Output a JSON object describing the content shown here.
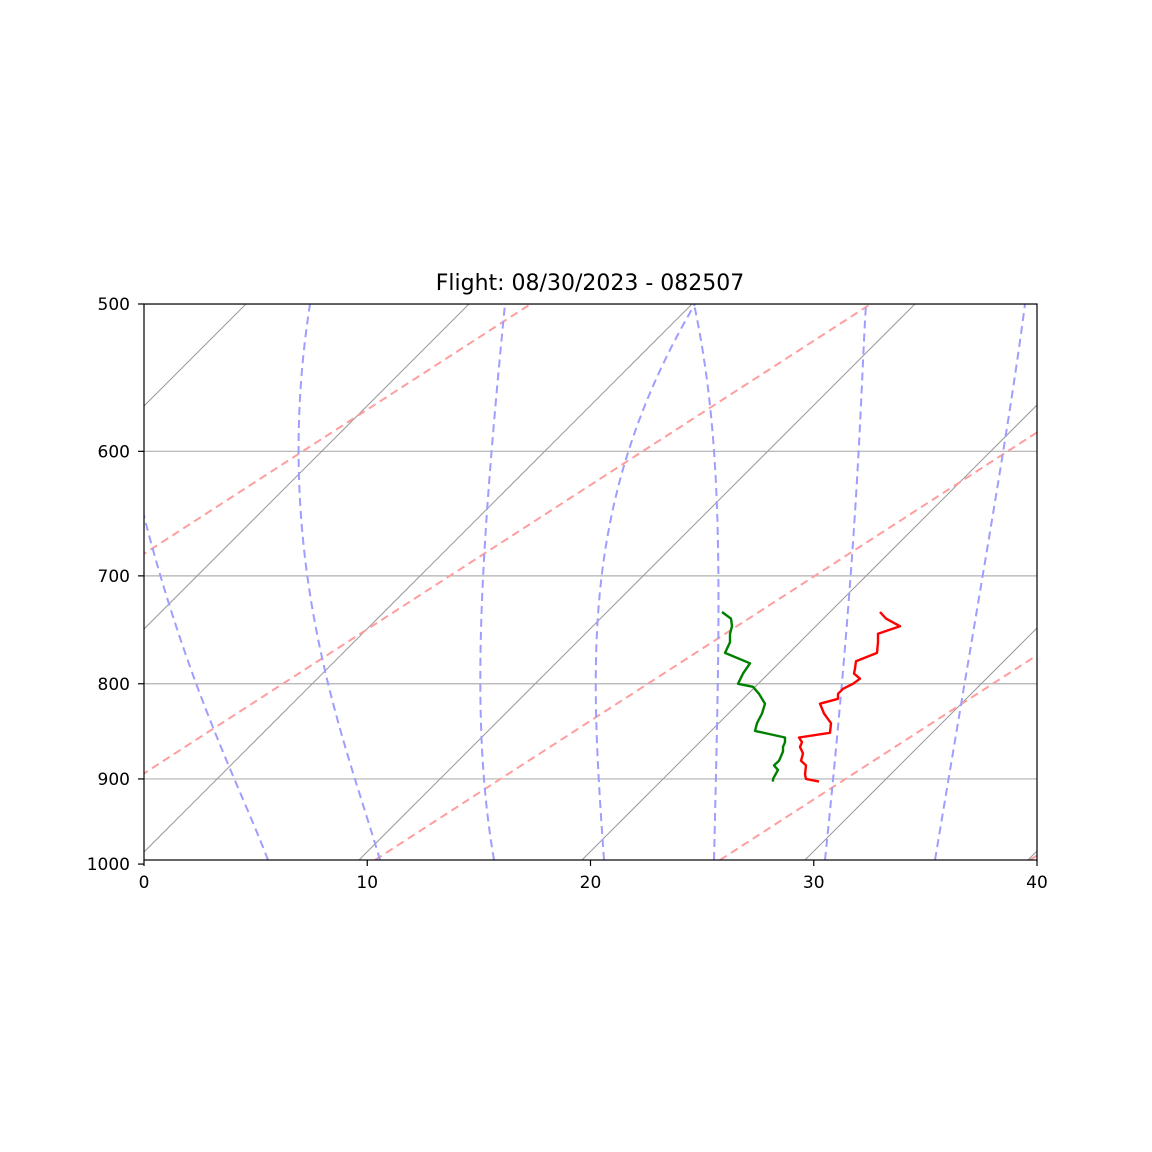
{
  "chart_data": {
    "type": "line",
    "subtype": "skew-t",
    "title": "Flight: 08/30/2023 - 082507",
    "xlabel": "",
    "ylabel": "",
    "xlim": [
      0,
      40
    ],
    "ylim": [
      1020,
      500
    ],
    "y_scale": "log",
    "x_ticks": [
      0,
      10,
      20,
      30,
      40
    ],
    "x_tick_labels": [
      "0",
      "10",
      "20",
      "30",
      "40"
    ],
    "y_ticks": [
      500,
      600,
      700,
      800,
      900,
      1000
    ],
    "y_tick_labels": [
      "500",
      "600",
      "700",
      "800",
      "900",
      "1000"
    ],
    "grid": true,
    "colors": {
      "temperature": "#ff0000",
      "dewpoint": "#008000",
      "dry_adiabats": "#ff9e9e",
      "moist_adiabats": "#9e9eff",
      "isotherms": "#999999",
      "isobars": "#b0b0b0"
    },
    "series": [
      {
        "key": "temperature",
        "pressure": [
          903,
          900,
          895,
          885,
          880,
          872,
          865,
          860,
          855,
          850,
          840,
          830,
          820,
          815,
          810,
          805,
          800,
          795,
          790,
          785,
          778,
          770,
          760,
          752,
          745,
          738,
          732
        ],
        "values": [
          30.4,
          29.8,
          29.6,
          29.8,
          29.6,
          29.6,
          29.7,
          29.5,
          29.6,
          30.7,
          31.0,
          30.5,
          30.4,
          31.4,
          31.3,
          31.5,
          31.7,
          32.2,
          32.1,
          32.4,
          32.5,
          33.2,
          33.5,
          33.4,
          34.0,
          33.6,
          33.2
        ],
        "screen_x": [
          819,
          806,
          805,
          806,
          801,
          803,
          800,
          802,
          799,
          830,
          831,
          824,
          820,
          838,
          838,
          843,
          853,
          860,
          854,
          855,
          856,
          877,
          878,
          878,
          900,
          886,
          880
        ]
      },
      {
        "key": "dewpoint",
        "pressure": [
          903,
          900,
          890,
          885,
          880,
          870,
          865,
          860,
          855,
          848,
          840,
          830,
          820,
          810,
          803,
          800,
          790,
          780,
          770,
          760,
          752,
          745,
          738,
          732
        ],
        "values": [
          28.2,
          28.3,
          28.6,
          28.3,
          28.6,
          28.9,
          28.9,
          29.0,
          29.0,
          27.5,
          27.5,
          27.7,
          27.8,
          27.6,
          27.2,
          26.6,
          26.9,
          27.4,
          26.2,
          26.5,
          26.6,
          26.7,
          26.5,
          26.0
        ],
        "screen_x": [
          773,
          773,
          778,
          774,
          779,
          783,
          783,
          785,
          785,
          755,
          757,
          762,
          765,
          759,
          753,
          738,
          743,
          750,
          725,
          730,
          730,
          732,
          731,
          722
        ]
      }
    ]
  }
}
